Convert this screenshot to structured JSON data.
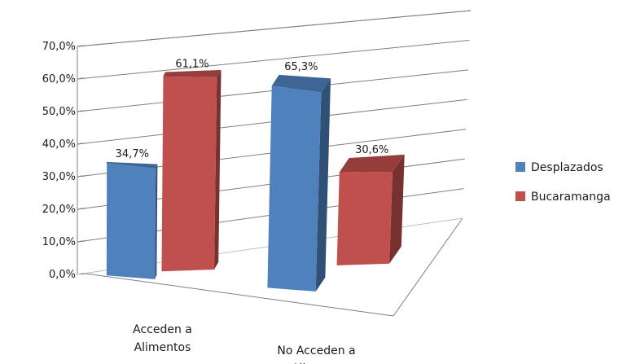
{
  "chart_data": {
    "type": "bar",
    "categories": [
      "Acceden a Alimentos",
      "No Acceden a Alimetos"
    ],
    "category_lines": [
      [
        "Acceden a",
        "Alimentos"
      ],
      [
        "No Acceden a",
        "Alimetos"
      ]
    ],
    "series": [
      {
        "name": "Desplazados",
        "values": [
          34.7,
          65.3
        ],
        "labels": [
          "34,7%",
          "65,3%"
        ],
        "color": "#4f81bd"
      },
      {
        "name": "Bucaramanga",
        "values": [
          61.1,
          30.6
        ],
        "labels": [
          "61,1%",
          "30,6%"
        ],
        "color": "#c0504d"
      }
    ],
    "yticks": [
      "0,0%",
      "10,0%",
      "20,0%",
      "30,0%",
      "40,0%",
      "50,0%",
      "60,0%",
      "70,0%"
    ],
    "ylim": [
      0,
      70
    ],
    "grid": true,
    "legend": "right",
    "style": "3d-clustered-column"
  }
}
